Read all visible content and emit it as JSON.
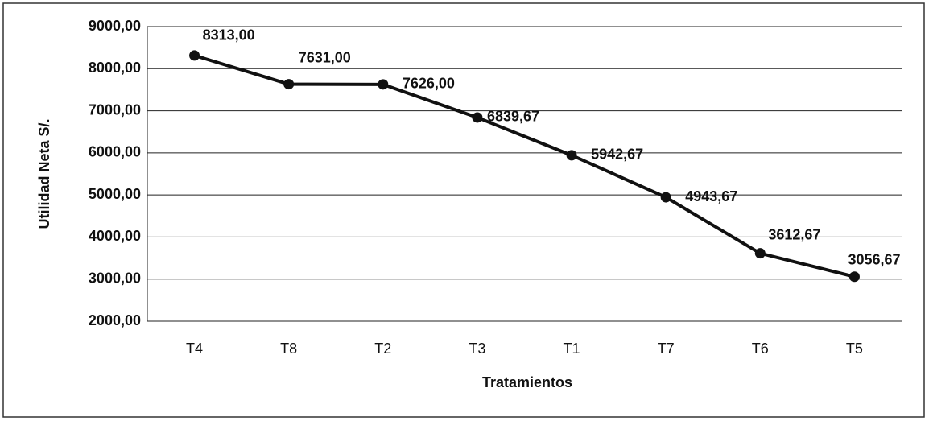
{
  "chart_data": {
    "type": "line",
    "y_label": "Utilidad Neta S/.",
    "x_label": "Tratamientos",
    "categories": [
      "T4",
      "T8",
      "T2",
      "T3",
      "T1",
      "T7",
      "T6",
      "T5"
    ],
    "values": [
      8313.0,
      7631.0,
      7626.0,
      6839.67,
      5942.67,
      4943.67,
      3612.67,
      3056.67
    ],
    "value_labels": [
      "8313,00",
      "7631,00",
      "7626,00",
      "6839,67",
      "5942,67",
      "4943,67",
      "3612,67",
      "3056,67"
    ],
    "color": "#111111",
    "ylim": [
      2000,
      9000
    ],
    "yticks": [
      {
        "value": 2000,
        "label": "2000,00"
      },
      {
        "value": 3000,
        "label": "3000,00"
      },
      {
        "value": 4000,
        "label": "4000,00"
      },
      {
        "value": 5000,
        "label": "5000,00"
      },
      {
        "value": 6000,
        "label": "6000,00"
      },
      {
        "value": 7000,
        "label": "7000,00"
      },
      {
        "value": 8000,
        "label": "8000,00"
      },
      {
        "value": 9000,
        "label": "9000,00"
      }
    ],
    "grid": true
  }
}
